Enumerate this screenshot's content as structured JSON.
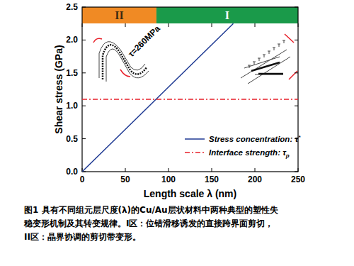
{
  "chart_data": {
    "type": "line",
    "x_label": "Length scale λ (nm)",
    "y_label": "Shear stress (GPa)",
    "xlim": [
      0,
      250
    ],
    "ylim": [
      0,
      2.5
    ],
    "xticks": [
      0,
      50,
      100,
      150,
      200,
      250
    ],
    "yticks": [
      {
        "value": 0,
        "label": "0.0"
      },
      0.5,
      {
        "value": 1,
        "label": "1.0"
      },
      1.5,
      {
        "value": 2,
        "label": "2.0"
      },
      2.5
    ],
    "legend": "lower right",
    "regions": [
      {
        "label": "II",
        "from": 0,
        "to": 86,
        "color": "#f08a24"
      },
      {
        "label": "I",
        "from": 86,
        "to": 250,
        "color": "#1a9a4a"
      }
    ],
    "annotations": [
      {
        "text": "τ=260MPa",
        "x": 74,
        "y": 1.95
      }
    ],
    "series": [
      {
        "name": "Stress concentration: τ*",
        "color": "#1f3a93",
        "line_style": "solid",
        "x": [
          0,
          175
        ],
        "values": [
          0,
          2.25
        ]
      },
      {
        "name": "Interface strength: τp",
        "color": "#e8202a",
        "line_style": "dashdot",
        "x": [
          0,
          250
        ],
        "values": [
          1.1,
          1.1
        ]
      }
    ],
    "caption": [
      "图1 具有不同组元层尺度(λ)的Cu/Au层状材料中两种典型的塑性失",
      "稳变形机制及其转变规律。I区：位错滑移诱发的直接跨界面剪切，",
      "II区：晶界协调的剪切带变形。"
    ]
  }
}
